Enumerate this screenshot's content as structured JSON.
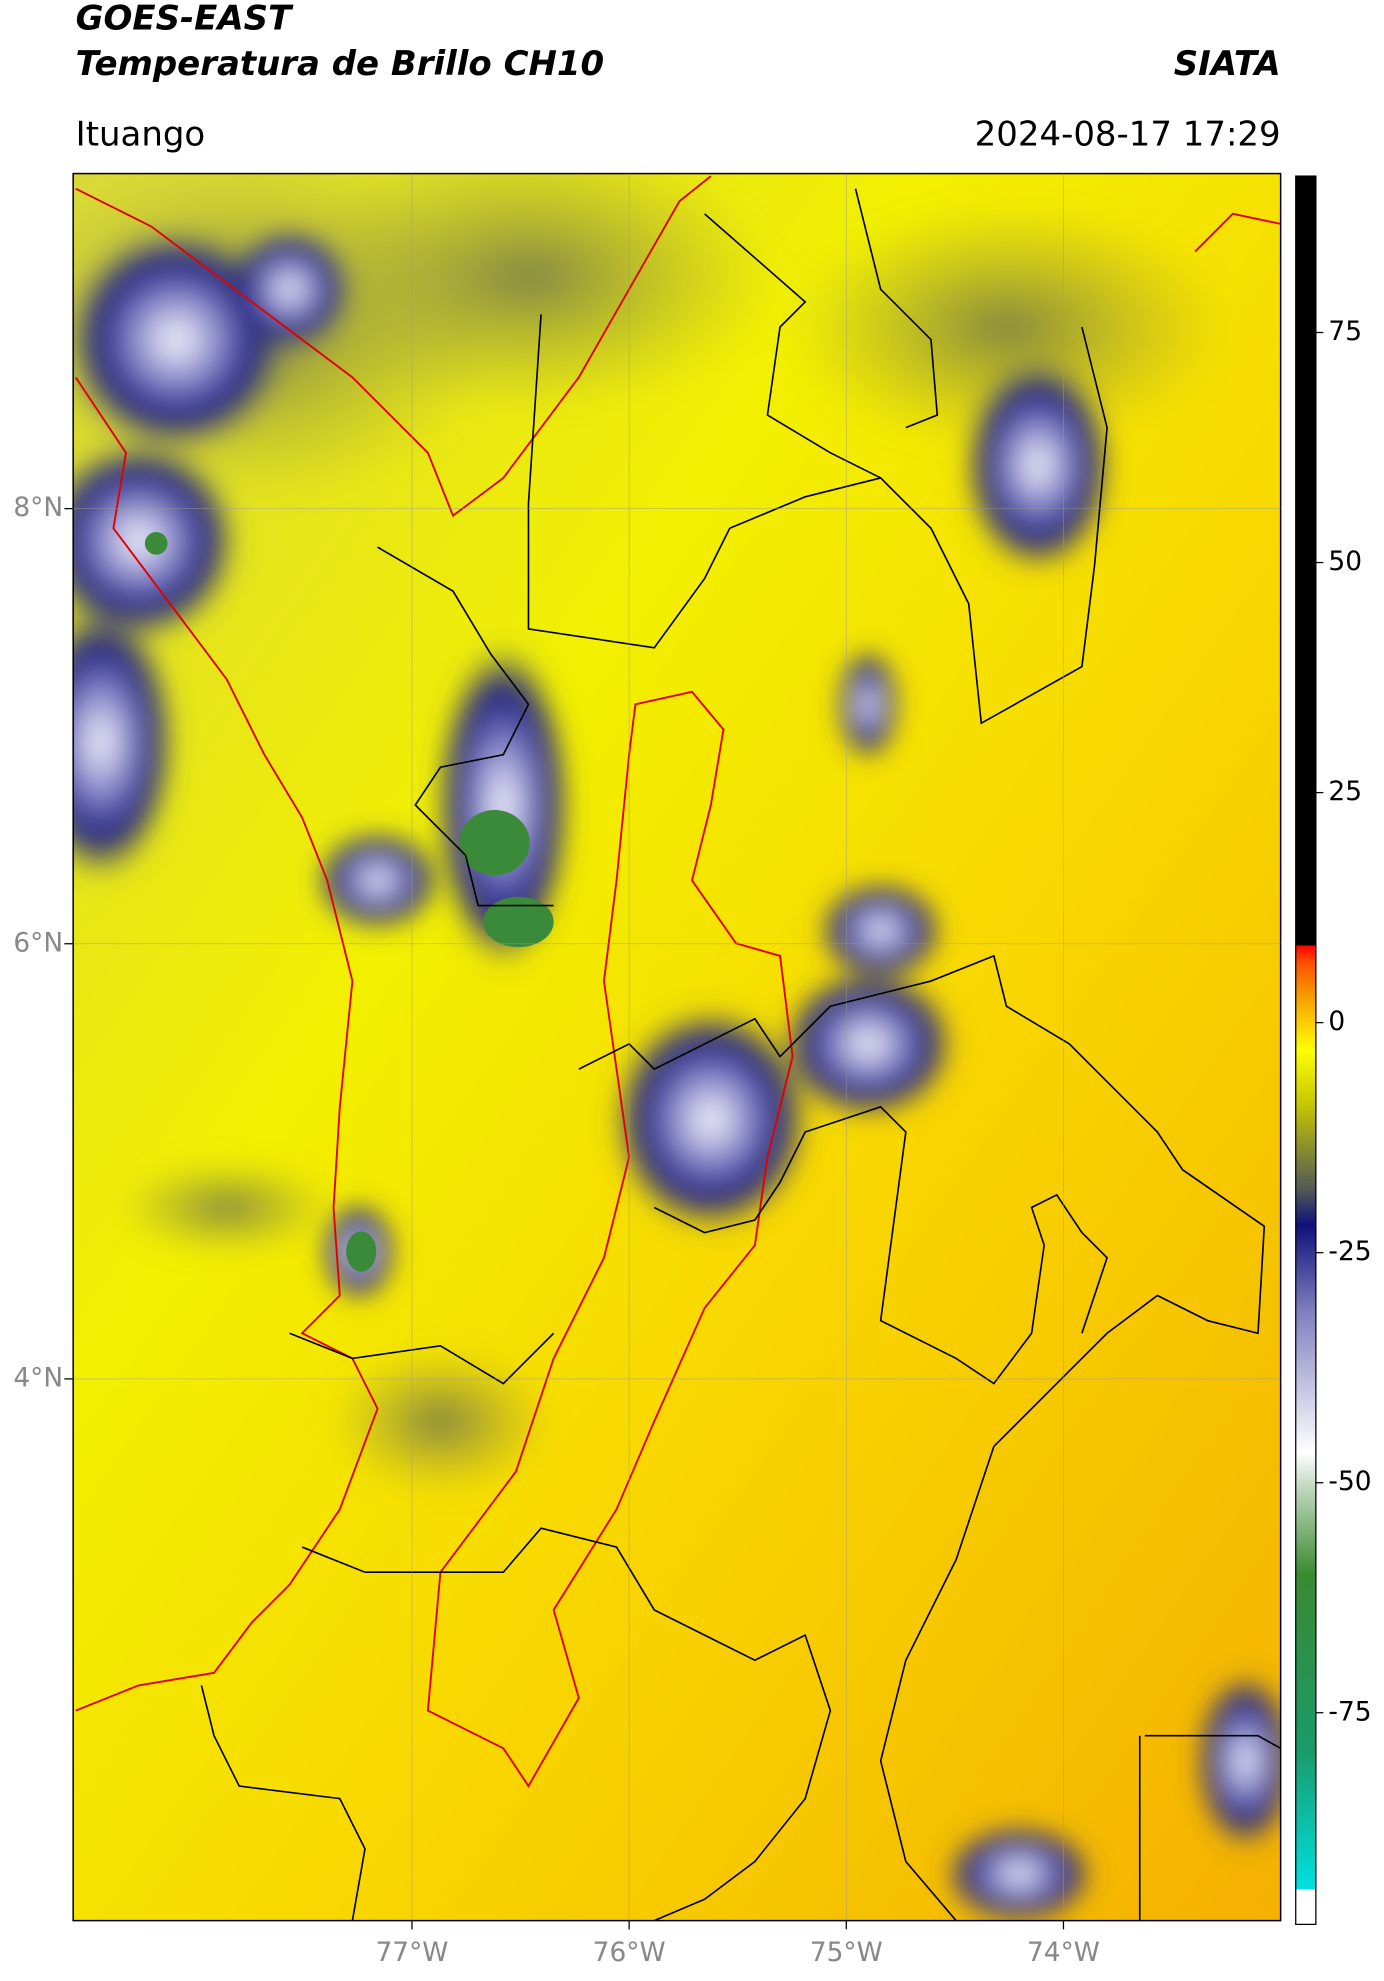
{
  "chart_data": {
    "type": "map",
    "title": "GOES-EAST",
    "subtitle": "Temperatura de Brillo CH10",
    "source": "SIATA",
    "location": "Ituango",
    "datetime": "2024-08-17 17:29",
    "xlim": [
      -78.56,
      -73.0
    ],
    "ylim": [
      1.51,
      9.54
    ],
    "xticks": [
      {
        "value": -77,
        "label": "77°W"
      },
      {
        "value": -76,
        "label": "76°W"
      },
      {
        "value": -75,
        "label": "75°W"
      },
      {
        "value": -74,
        "label": "74°W"
      }
    ],
    "yticks": [
      {
        "value": 8,
        "label": "8°N"
      },
      {
        "value": 6,
        "label": "6°N"
      },
      {
        "value": 4,
        "label": "4°N"
      }
    ],
    "grid": true,
    "colorbar": {
      "lim": [
        -98,
        92
      ],
      "ticks": [
        75,
        50,
        25,
        0,
        -25,
        -50,
        -75
      ]
    }
  }
}
